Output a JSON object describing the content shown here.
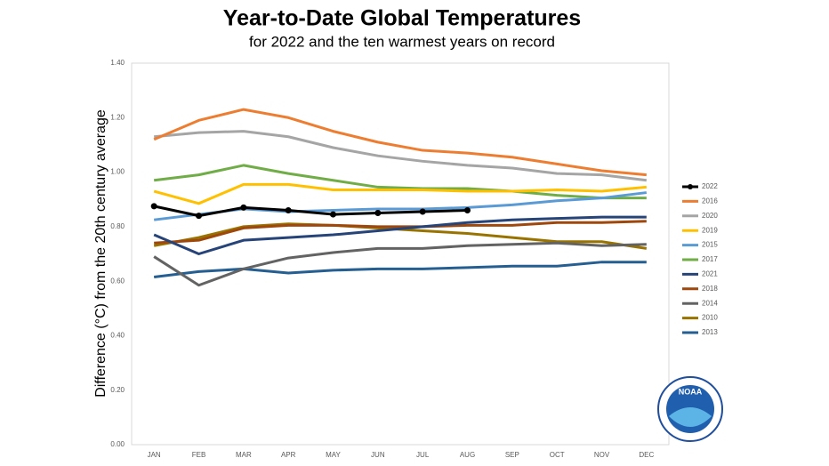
{
  "chart_data": {
    "type": "line",
    "title": "Year-to-Date Global Temperatures",
    "subtitle": "for 2022 and the ten warmest years on record",
    "y_label": "Difference (°C) from the 20th century average",
    "logo": "NOAA",
    "categories": [
      "JAN",
      "FEB",
      "MAR",
      "APR",
      "MAY",
      "JUN",
      "JUL",
      "AUG",
      "SEP",
      "OCT",
      "NOV",
      "DEC"
    ],
    "ylim": [
      0,
      1.4
    ],
    "yticks": [
      {
        "value": 0,
        "label": "0.00"
      },
      {
        "value": 0.2,
        "label": "0.20"
      },
      {
        "value": 0.4,
        "label": "0.40"
      },
      {
        "value": 0.6,
        "label": "0.60"
      },
      {
        "value": 0.8,
        "label": "0.80"
      },
      {
        "value": 1,
        "label": "1.00"
      },
      {
        "value": 1.2,
        "label": "1.20"
      },
      {
        "value": 1.4,
        "label": "1.40"
      }
    ],
    "grid": false,
    "legend": "right",
    "series": [
      {
        "name": "2022",
        "color": "#000000",
        "markers": true,
        "values": [
          0.875,
          0.84,
          0.87,
          0.86,
          0.845,
          0.85,
          0.855,
          0.86,
          null,
          null,
          null,
          null
        ]
      },
      {
        "name": "2016",
        "color": "#ed7d31",
        "values": [
          1.12,
          1.19,
          1.23,
          1.2,
          1.15,
          1.11,
          1.08,
          1.07,
          1.055,
          1.03,
          1.005,
          0.99
        ]
      },
      {
        "name": "2020",
        "color": "#a5a5a5",
        "values": [
          1.13,
          1.145,
          1.15,
          1.13,
          1.09,
          1.06,
          1.04,
          1.025,
          1.015,
          0.995,
          0.99,
          0.97
        ]
      },
      {
        "name": "2019",
        "color": "#ffc000",
        "values": [
          0.93,
          0.885,
          0.955,
          0.955,
          0.935,
          0.935,
          0.935,
          0.93,
          0.93,
          0.935,
          0.93,
          0.945
        ]
      },
      {
        "name": "2015",
        "color": "#5b9bd5",
        "values": [
          0.825,
          0.845,
          0.865,
          0.855,
          0.86,
          0.865,
          0.865,
          0.87,
          0.88,
          0.895,
          0.905,
          0.925
        ]
      },
      {
        "name": "2017",
        "color": "#70ad47",
        "values": [
          0.97,
          0.99,
          1.025,
          0.995,
          0.97,
          0.945,
          0.94,
          0.94,
          0.93,
          0.915,
          0.905,
          0.905
        ]
      },
      {
        "name": "2021",
        "color": "#264478",
        "values": [
          0.77,
          0.7,
          0.75,
          0.76,
          0.77,
          0.785,
          0.8,
          0.815,
          0.825,
          0.83,
          0.835,
          0.835
        ]
      },
      {
        "name": "2018",
        "color": "#9e480e",
        "values": [
          0.74,
          0.75,
          0.795,
          0.805,
          0.805,
          0.8,
          0.8,
          0.805,
          0.805,
          0.815,
          0.815,
          0.82
        ]
      },
      {
        "name": "2014",
        "color": "#636363",
        "values": [
          0.69,
          0.585,
          0.645,
          0.685,
          0.705,
          0.72,
          0.72,
          0.73,
          0.735,
          0.74,
          0.73,
          0.735
        ]
      },
      {
        "name": "2010",
        "color": "#997300",
        "values": [
          0.73,
          0.76,
          0.8,
          0.81,
          0.805,
          0.795,
          0.785,
          0.775,
          0.76,
          0.745,
          0.745,
          0.72
        ]
      },
      {
        "name": "2013",
        "color": "#255e91",
        "values": [
          0.615,
          0.635,
          0.645,
          0.63,
          0.64,
          0.645,
          0.645,
          0.65,
          0.655,
          0.655,
          0.67,
          0.67
        ]
      }
    ]
  }
}
